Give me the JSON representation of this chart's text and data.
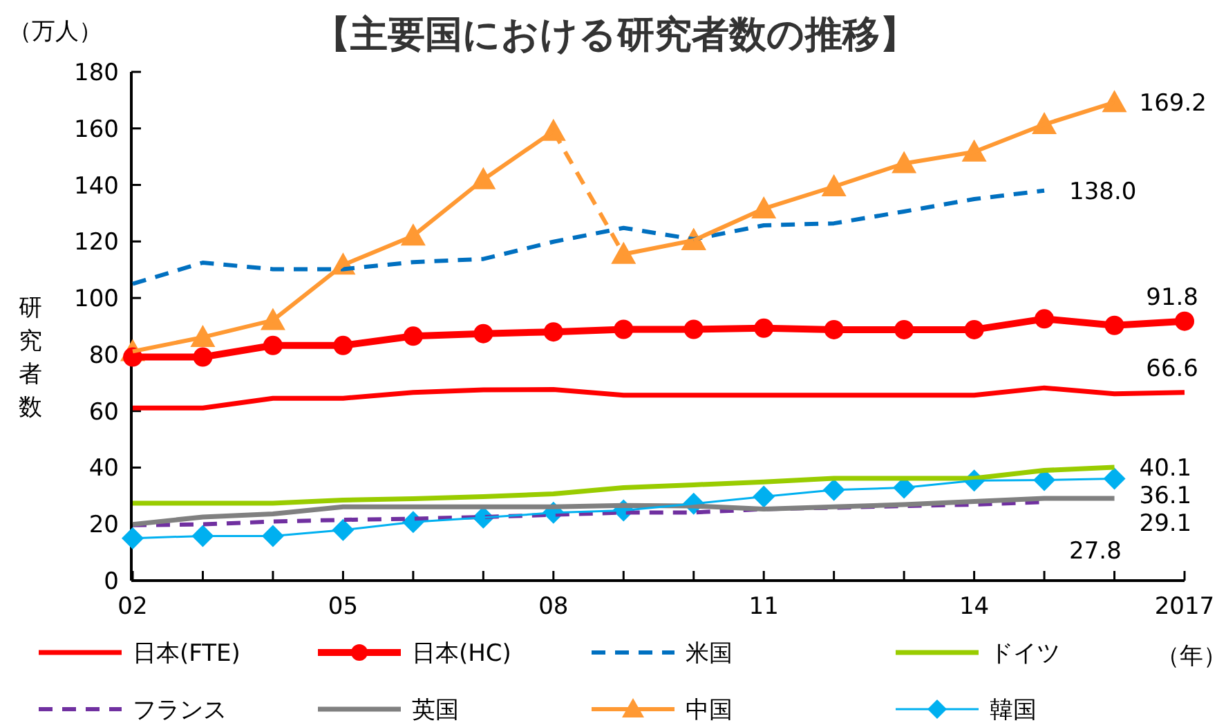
{
  "chart_data": {
    "type": "line",
    "title": "【主要国における研究者数の推移】",
    "ylabel": "研究者数",
    "xlabel": "（年）",
    "annotations": [
      "（万人）"
    ],
    "x": [
      2002,
      2003,
      2004,
      2005,
      2006,
      2007,
      2008,
      2009,
      2010,
      2011,
      2012,
      2013,
      2014,
      2015,
      2016,
      2017
    ],
    "xlim": [
      2002,
      2017
    ],
    "xticks": [
      {
        "value": 2002,
        "label": "02"
      },
      {
        "value": 2003,
        "label": null
      },
      {
        "value": 2004,
        "label": null
      },
      {
        "value": 2005,
        "label": "05"
      },
      {
        "value": 2006,
        "label": null
      },
      {
        "value": 2007,
        "label": null
      },
      {
        "value": 2008,
        "label": "08"
      },
      {
        "value": 2009,
        "label": null
      },
      {
        "value": 2010,
        "label": null
      },
      {
        "value": 2011,
        "label": "11"
      },
      {
        "value": 2012,
        "label": null
      },
      {
        "value": 2013,
        "label": null
      },
      {
        "value": 2014,
        "label": "14"
      },
      {
        "value": 2015,
        "label": null
      },
      {
        "value": 2016,
        "label": null
      },
      2017
    ],
    "ylim": [
      0,
      180
    ],
    "yticks": [
      0,
      20,
      40,
      60,
      80,
      100,
      120,
      140,
      160,
      180
    ],
    "grid": false,
    "legend": "bottom",
    "series": [
      {
        "name": "日本(FTE)",
        "color": "#ff0000",
        "marker": "none",
        "line_style": "solid",
        "values": [
          61.1,
          61.1,
          64.5,
          64.5,
          66.6,
          67.5,
          67.6,
          65.6,
          65.6,
          65.6,
          65.6,
          65.6,
          65.6,
          68.2,
          66.1,
          66.6
        ],
        "value_labels": [
          null,
          null,
          null,
          null,
          null,
          null,
          null,
          null,
          null,
          null,
          null,
          null,
          null,
          null,
          null,
          "66.6"
        ]
      },
      {
        "name": "日本(HC)",
        "color": "#ff0000",
        "marker": "circle",
        "line_style": "solid",
        "values": [
          79.1,
          79.1,
          83.2,
          83.2,
          86.5,
          87.4,
          88.0,
          88.9,
          88.9,
          89.3,
          88.8,
          88.8,
          88.8,
          92.6,
          90.3,
          91.8
        ],
        "value_labels": [
          null,
          null,
          null,
          null,
          null,
          null,
          null,
          null,
          null,
          null,
          null,
          null,
          null,
          null,
          null,
          "91.8"
        ]
      },
      {
        "name": "米国",
        "color": "#0070c0",
        "marker": "none",
        "line_style": "dashed",
        "values": [
          105.0,
          112.5,
          110.2,
          110.2,
          112.7,
          113.8,
          119.9,
          124.8,
          120.8,
          125.7,
          126.4,
          130.6,
          135.0,
          138.0,
          null,
          null
        ],
        "value_labels": [
          null,
          null,
          null,
          null,
          null,
          null,
          null,
          null,
          null,
          null,
          null,
          null,
          null,
          "138.0",
          null,
          null
        ]
      },
      {
        "name": "ドイツ",
        "color": "#99cc00",
        "marker": "none",
        "line_style": "solid",
        "values": [
          27.4,
          27.4,
          27.4,
          28.5,
          29.0,
          29.7,
          30.7,
          32.9,
          33.9,
          34.9,
          36.2,
          36.2,
          36.2,
          39.0,
          40.1,
          null
        ],
        "value_labels": [
          null,
          null,
          null,
          null,
          null,
          null,
          null,
          null,
          null,
          null,
          null,
          null,
          null,
          null,
          "40.1",
          null
        ]
      },
      {
        "name": "フランス",
        "color": "#7030a0",
        "marker": "none",
        "line_style": "dashed",
        "values": [
          19.6,
          19.9,
          20.9,
          21.5,
          21.9,
          22.5,
          23.3,
          24.1,
          24.1,
          25.3,
          25.8,
          26.4,
          26.9,
          27.8,
          null,
          null
        ],
        "value_labels": [
          null,
          null,
          null,
          null,
          null,
          null,
          null,
          null,
          null,
          null,
          null,
          null,
          null,
          "27.8",
          null,
          null
        ]
      },
      {
        "name": "英国",
        "color": "#808080",
        "marker": "none",
        "line_style": "solid",
        "values": [
          19.9,
          22.5,
          23.6,
          26.1,
          26.1,
          26.1,
          26.1,
          26.6,
          26.4,
          25.3,
          26.1,
          26.9,
          28.0,
          29.1,
          29.1,
          null
        ],
        "value_labels": [
          null,
          null,
          null,
          null,
          null,
          null,
          null,
          null,
          null,
          null,
          null,
          null,
          null,
          null,
          "29.1",
          null
        ]
      },
      {
        "name": "中国",
        "color": "#ff9933",
        "marker": "triangle",
        "line_style": "solid",
        "values": [
          81.1,
          86.1,
          92.1,
          111.7,
          122.0,
          141.9,
          159.0,
          null,
          120.4,
          131.6,
          139.4,
          147.6,
          151.7,
          161.4,
          169.2,
          null
        ],
        "value_labels": [
          null,
          null,
          null,
          null,
          null,
          null,
          null,
          null,
          null,
          null,
          null,
          null,
          null,
          null,
          "169.2",
          null
        ]
      },
      {
        "color": "#ff9933",
        "line_style": "dashed",
        "values": [
          null,
          null,
          null,
          null,
          null,
          null,
          159.0,
          115.5,
          null,
          null,
          null,
          null,
          null,
          null,
          null,
          null
        ]
      },
      {
        "color": "#ff9933",
        "marker": "triangle",
        "line_style": "solid",
        "values": [
          null,
          null,
          null,
          null,
          null,
          null,
          null,
          115.5,
          120.4,
          null,
          null,
          null,
          null,
          null,
          null,
          null
        ]
      },
      {
        "name": "韓国",
        "color": "#00b0f0",
        "marker": "diamond",
        "line_style": "solid",
        "values": [
          15.0,
          15.8,
          15.8,
          17.9,
          20.7,
          22.3,
          24.0,
          24.8,
          27.2,
          29.7,
          32.1,
          32.9,
          35.4,
          35.6,
          36.1,
          null
        ],
        "value_labels": [
          null,
          null,
          null,
          null,
          null,
          null,
          null,
          null,
          null,
          null,
          null,
          null,
          null,
          null,
          "36.1",
          null
        ]
      }
    ]
  }
}
